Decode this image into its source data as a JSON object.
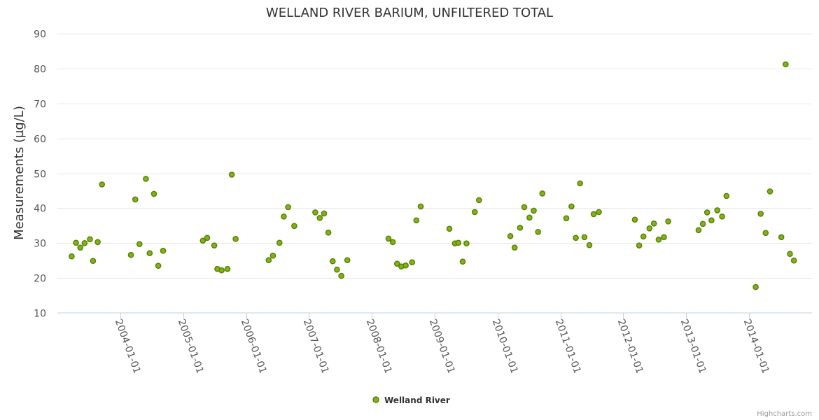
{
  "colors": {
    "marker_fill": "#7cb518",
    "marker_stroke": "#5a7d00"
  },
  "chart_data": {
    "type": "scatter",
    "title": "WELLAND RIVER BARIUM, UNFILTERED TOTAL",
    "xlabel": "",
    "ylabel": "Measurements (µg/L)",
    "ylim": [
      10,
      90
    ],
    "yticks": [
      10,
      20,
      30,
      40,
      50,
      60,
      70,
      80,
      90
    ],
    "xlim": [
      "2003-01-01",
      "2015-01-01"
    ],
    "xticks": [
      "2004-01-01",
      "2005-01-01",
      "2006-01-01",
      "2007-01-01",
      "2008-01-01",
      "2009-01-01",
      "2010-01-01",
      "2011-01-01",
      "2012-01-01",
      "2013-01-01",
      "2014-01-01"
    ],
    "grid": true,
    "legend": "bottom-center",
    "series": [
      {
        "name": "Welland River",
        "points": [
          [
            "2003-03-25",
            26.2
          ],
          [
            "2003-04-19",
            30.1
          ],
          [
            "2003-05-14",
            28.7
          ],
          [
            "2003-06-08",
            30.0
          ],
          [
            "2003-07-09",
            31.1
          ],
          [
            "2003-07-27",
            24.9
          ],
          [
            "2003-08-23",
            30.3
          ],
          [
            "2003-09-17",
            46.8
          ],
          [
            "2004-03-03",
            26.6
          ],
          [
            "2004-03-28",
            42.5
          ],
          [
            "2004-04-22",
            29.7
          ],
          [
            "2004-05-29",
            48.4
          ],
          [
            "2004-06-20",
            27.1
          ],
          [
            "2004-07-15",
            44.1
          ],
          [
            "2004-08-09",
            23.5
          ],
          [
            "2004-09-06",
            27.8
          ],
          [
            "2005-04-25",
            30.7
          ],
          [
            "2005-05-20",
            31.5
          ],
          [
            "2005-06-30",
            29.3
          ],
          [
            "2005-07-18",
            22.6
          ],
          [
            "2005-08-12",
            22.2
          ],
          [
            "2005-09-15",
            22.6
          ],
          [
            "2005-10-10",
            49.6
          ],
          [
            "2005-11-01",
            31.2
          ],
          [
            "2006-05-12",
            25.1
          ],
          [
            "2006-06-06",
            26.4
          ],
          [
            "2006-07-14",
            30.1
          ],
          [
            "2006-08-08",
            37.6
          ],
          [
            "2006-09-02",
            40.3
          ],
          [
            "2006-10-08",
            34.9
          ],
          [
            "2007-02-07",
            38.8
          ],
          [
            "2007-03-05",
            37.2
          ],
          [
            "2007-03-30",
            38.5
          ],
          [
            "2007-04-24",
            33.0
          ],
          [
            "2007-05-19",
            24.8
          ],
          [
            "2007-06-13",
            22.4
          ],
          [
            "2007-07-08",
            20.6
          ],
          [
            "2007-08-12",
            25.1
          ],
          [
            "2008-04-07",
            31.3
          ],
          [
            "2008-05-02",
            30.3
          ],
          [
            "2008-05-27",
            24.1
          ],
          [
            "2008-06-21",
            23.3
          ],
          [
            "2008-07-16",
            23.6
          ],
          [
            "2008-08-22",
            24.5
          ],
          [
            "2008-09-16",
            36.5
          ],
          [
            "2008-10-11",
            40.5
          ],
          [
            "2009-03-27",
            34.1
          ],
          [
            "2009-04-28",
            29.9
          ],
          [
            "2009-05-18",
            30.1
          ],
          [
            "2009-06-12",
            24.7
          ],
          [
            "2009-07-04",
            29.9
          ],
          [
            "2009-08-21",
            38.9
          ],
          [
            "2009-09-15",
            42.3
          ],
          [
            "2010-03-16",
            32.0
          ],
          [
            "2010-04-10",
            28.7
          ],
          [
            "2010-05-11",
            34.4
          ],
          [
            "2010-06-05",
            40.3
          ],
          [
            "2010-07-05",
            37.3
          ],
          [
            "2010-07-30",
            39.3
          ],
          [
            "2010-08-24",
            33.2
          ],
          [
            "2010-09-18",
            44.2
          ],
          [
            "2011-02-04",
            37.1
          ],
          [
            "2011-03-06",
            40.5
          ],
          [
            "2011-03-31",
            31.5
          ],
          [
            "2011-04-25",
            47.1
          ],
          [
            "2011-05-20",
            31.7
          ],
          [
            "2011-06-18",
            29.4
          ],
          [
            "2011-07-13",
            38.3
          ],
          [
            "2011-08-12",
            38.9
          ],
          [
            "2012-03-08",
            36.7
          ],
          [
            "2012-04-02",
            29.3
          ],
          [
            "2012-04-27",
            31.9
          ],
          [
            "2012-06-01",
            34.2
          ],
          [
            "2012-06-27",
            35.6
          ],
          [
            "2012-07-24",
            31.0
          ],
          [
            "2012-08-24",
            31.7
          ],
          [
            "2012-09-18",
            36.2
          ],
          [
            "2013-03-13",
            33.7
          ],
          [
            "2013-04-07",
            35.5
          ],
          [
            "2013-05-02",
            38.8
          ],
          [
            "2013-05-27",
            36.5
          ],
          [
            "2013-06-30",
            39.4
          ],
          [
            "2013-07-28",
            37.6
          ],
          [
            "2013-08-22",
            43.5
          ],
          [
            "2014-02-08",
            17.4
          ],
          [
            "2014-03-09",
            38.4
          ],
          [
            "2014-04-07",
            32.9
          ],
          [
            "2014-05-02",
            44.8
          ],
          [
            "2014-07-07",
            31.7
          ],
          [
            "2014-08-01",
            81.2
          ],
          [
            "2014-08-26",
            26.9
          ],
          [
            "2014-09-18",
            25.0
          ]
        ]
      }
    ]
  },
  "credits": "Highcharts.com"
}
